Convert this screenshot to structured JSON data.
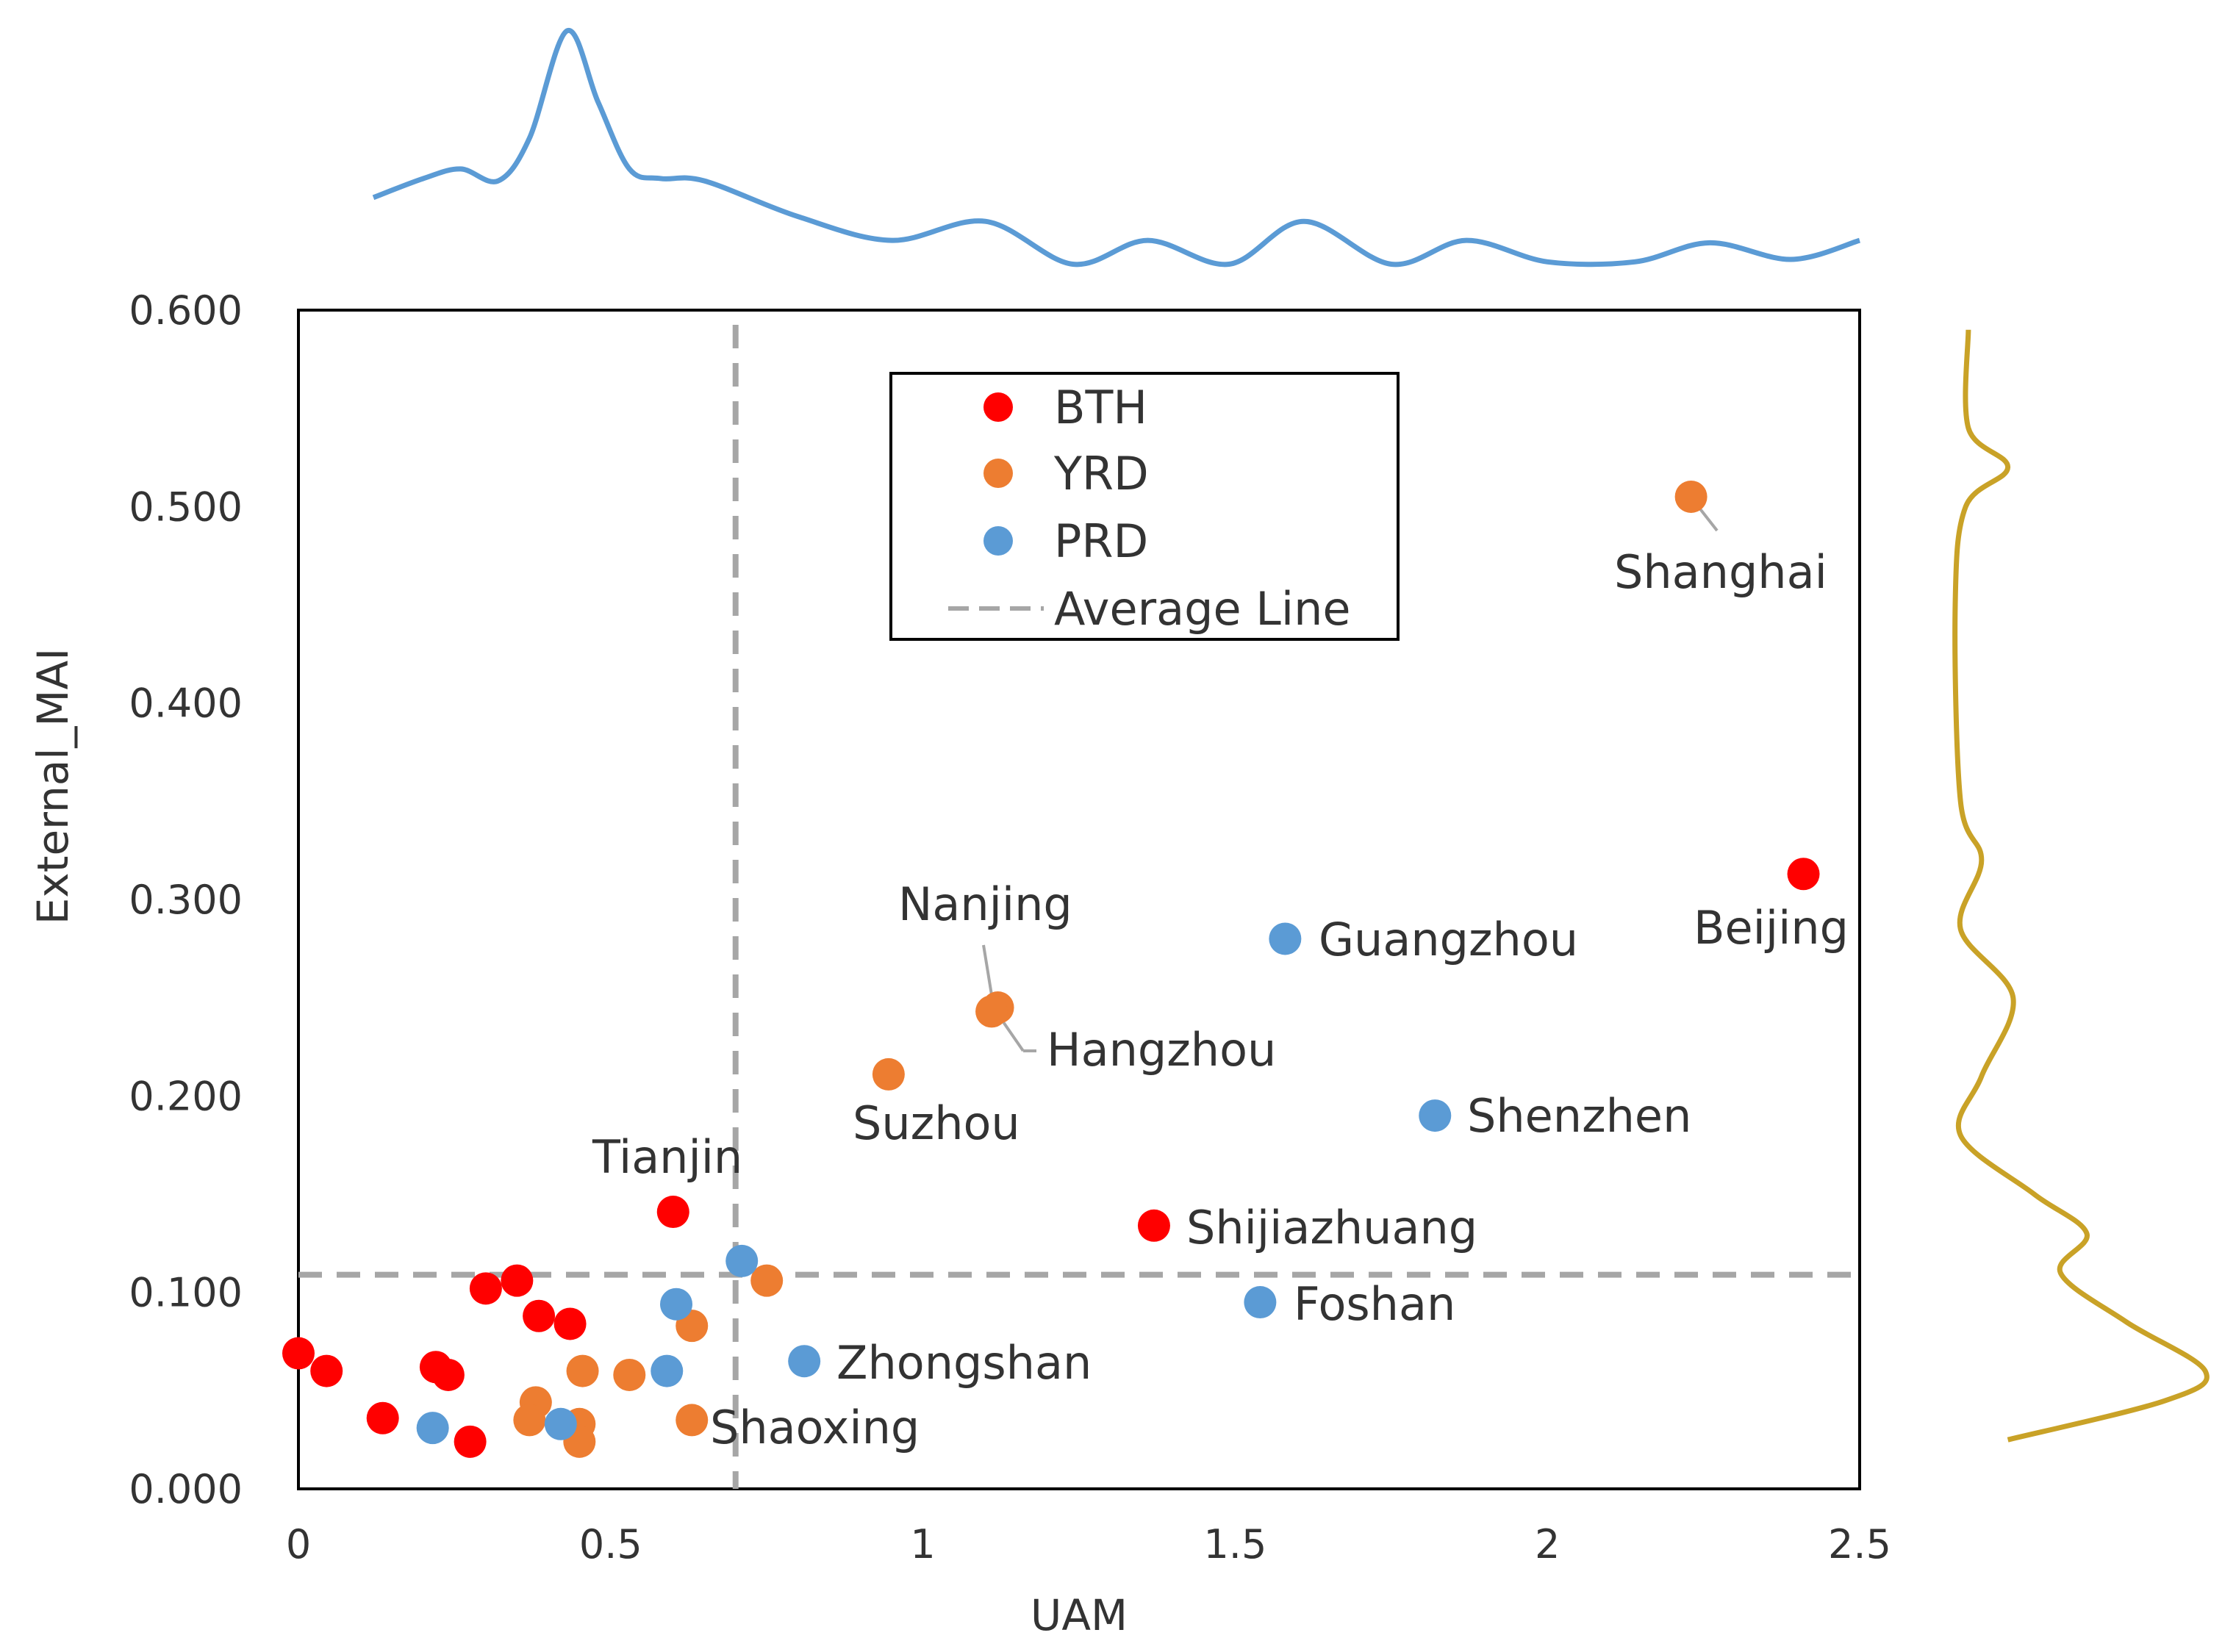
{
  "chart_data": {
    "type": "scatter",
    "title": "",
    "xlabel": "UAM",
    "ylabel": "External_MAI",
    "xlim": [
      0,
      2.5
    ],
    "ylim": [
      0,
      0.6
    ],
    "x_ticks": [
      "0",
      "0.5",
      "1",
      "1.5",
      "2",
      "2.5"
    ],
    "y_ticks": [
      "0.000",
      "0.100",
      "0.200",
      "0.300",
      "0.400",
      "0.500",
      "0.600"
    ],
    "legend_position": "top-center",
    "colors": {
      "BTH": "#ff0000",
      "YRD": "#ed7d31",
      "PRD": "#5b9bd5",
      "average": "#a6a6a6",
      "x_density": "#5b9bd5",
      "y_density": "#c9a227"
    },
    "average_line": {
      "x": 0.7,
      "y": 0.109,
      "label": "Average Line"
    },
    "series": [
      {
        "name": "BTH",
        "points": [
          {
            "x": 2.41,
            "y": 0.313,
            "label": "Beijing"
          },
          {
            "x": 1.37,
            "y": 0.134,
            "label": "Shijiazhuang"
          },
          {
            "x": 0.6,
            "y": 0.141,
            "label": "Tianjin"
          },
          {
            "x": 0.0,
            "y": 0.069
          },
          {
            "x": 0.045,
            "y": 0.06
          },
          {
            "x": 0.135,
            "y": 0.036
          },
          {
            "x": 0.22,
            "y": 0.062
          },
          {
            "x": 0.24,
            "y": 0.058
          },
          {
            "x": 0.275,
            "y": 0.024
          },
          {
            "x": 0.3,
            "y": 0.102
          },
          {
            "x": 0.35,
            "y": 0.106
          },
          {
            "x": 0.385,
            "y": 0.088
          },
          {
            "x": 0.435,
            "y": 0.084
          }
        ]
      },
      {
        "name": "YRD",
        "points": [
          {
            "x": 2.23,
            "y": 0.505,
            "label": "Shanghai"
          },
          {
            "x": 1.12,
            "y": 0.245,
            "label": "Nanjing"
          },
          {
            "x": 1.11,
            "y": 0.243,
            "label": "Hangzhou"
          },
          {
            "x": 0.945,
            "y": 0.211,
            "label": "Suzhou"
          },
          {
            "x": 0.63,
            "y": 0.035,
            "label": "Shaoxing"
          },
          {
            "x": 0.75,
            "y": 0.106
          },
          {
            "x": 0.63,
            "y": 0.083
          },
          {
            "x": 0.455,
            "y": 0.06
          },
          {
            "x": 0.53,
            "y": 0.058
          },
          {
            "x": 0.38,
            "y": 0.044
          },
          {
            "x": 0.37,
            "y": 0.035
          },
          {
            "x": 0.45,
            "y": 0.033
          },
          {
            "x": 0.45,
            "y": 0.024
          }
        ]
      },
      {
        "name": "PRD",
        "points": [
          {
            "x": 1.58,
            "y": 0.28,
            "label": "Guangzhou"
          },
          {
            "x": 1.82,
            "y": 0.19,
            "label": "Shenzhen"
          },
          {
            "x": 1.54,
            "y": 0.095,
            "label": "Foshan"
          },
          {
            "x": 0.81,
            "y": 0.065,
            "label": "Zhongshan"
          },
          {
            "x": 0.71,
            "y": 0.116
          },
          {
            "x": 0.605,
            "y": 0.094
          },
          {
            "x": 0.59,
            "y": 0.06
          },
          {
            "x": 0.215,
            "y": 0.031
          },
          {
            "x": 0.42,
            "y": 0.033
          }
        ]
      }
    ],
    "x_density": [
      [
        0.12,
        0.3
      ],
      [
        0.2,
        0.38
      ],
      [
        0.26,
        0.42
      ],
      [
        0.32,
        0.37
      ],
      [
        0.37,
        0.55
      ],
      [
        0.43,
        1.0
      ],
      [
        0.48,
        0.7
      ],
      [
        0.53,
        0.42
      ],
      [
        0.58,
        0.38
      ],
      [
        0.65,
        0.37
      ],
      [
        0.8,
        0.22
      ],
      [
        0.95,
        0.12
      ],
      [
        1.1,
        0.2
      ],
      [
        1.24,
        0.02
      ],
      [
        1.36,
        0.12
      ],
      [
        1.49,
        0.02
      ],
      [
        1.61,
        0.2
      ],
      [
        1.75,
        0.02
      ],
      [
        1.87,
        0.12
      ],
      [
        2.0,
        0.03
      ],
      [
        2.14,
        0.03
      ],
      [
        2.26,
        0.11
      ],
      [
        2.39,
        0.04
      ],
      [
        2.5,
        0.12
      ]
    ],
    "y_density": [
      [
        0.59,
        0.05
      ],
      [
        0.54,
        0.05
      ],
      [
        0.52,
        0.2
      ],
      [
        0.5,
        0.04
      ],
      [
        0.45,
        0.0
      ],
      [
        0.35,
        0.02
      ],
      [
        0.32,
        0.1
      ],
      [
        0.285,
        0.02
      ],
      [
        0.25,
        0.22
      ],
      [
        0.21,
        0.1
      ],
      [
        0.18,
        0.02
      ],
      [
        0.15,
        0.3
      ],
      [
        0.13,
        0.5
      ],
      [
        0.11,
        0.4
      ],
      [
        0.085,
        0.65
      ],
      [
        0.06,
        0.95
      ],
      [
        0.045,
        0.8
      ],
      [
        0.025,
        0.2
      ]
    ]
  }
}
